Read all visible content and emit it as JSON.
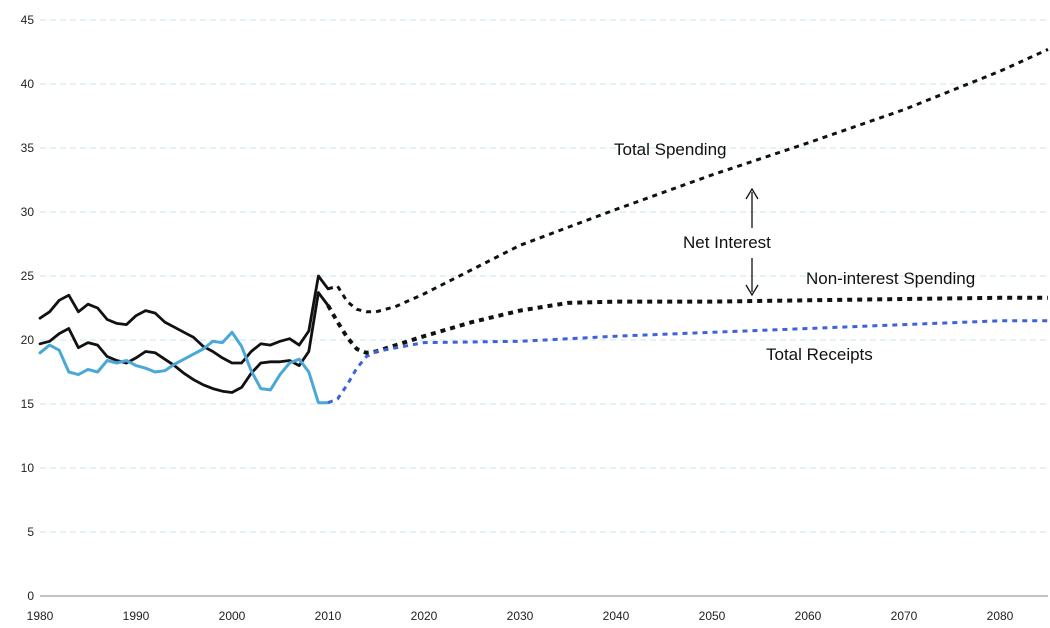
{
  "chart_data": {
    "type": "line",
    "title": "",
    "xlabel": "",
    "ylabel": "",
    "xlim": [
      1980,
      2085
    ],
    "ylim": [
      0,
      45
    ],
    "x_ticks": [
      1980,
      1990,
      2000,
      2010,
      2020,
      2030,
      2040,
      2050,
      2060,
      2070,
      2080
    ],
    "y_ticks": [
      0,
      5,
      10,
      15,
      20,
      25,
      30,
      35,
      40,
      45
    ],
    "grid": true,
    "colors": {
      "spending": "#111111",
      "receipts_actual": "#4aa8d8",
      "receipts_projected": "#3d63d6",
      "grid": "#c9e6ee"
    },
    "series": [
      {
        "name": "Total Spending",
        "actual": [
          [
            1980,
            21.7
          ],
          [
            1981,
            22.2
          ],
          [
            1982,
            23.1
          ],
          [
            1983,
            23.5
          ],
          [
            1984,
            22.2
          ],
          [
            1985,
            22.8
          ],
          [
            1986,
            22.5
          ],
          [
            1987,
            21.6
          ],
          [
            1988,
            21.3
          ],
          [
            1989,
            21.2
          ],
          [
            1990,
            21.9
          ],
          [
            1991,
            22.3
          ],
          [
            1992,
            22.1
          ],
          [
            1993,
            21.4
          ],
          [
            1994,
            21.0
          ],
          [
            1995,
            20.6
          ],
          [
            1996,
            20.2
          ],
          [
            1997,
            19.5
          ],
          [
            1998,
            19.1
          ],
          [
            1999,
            18.6
          ],
          [
            2000,
            18.2
          ],
          [
            2001,
            18.2
          ],
          [
            2002,
            19.1
          ],
          [
            2003,
            19.7
          ],
          [
            2004,
            19.6
          ],
          [
            2005,
            19.9
          ],
          [
            2006,
            20.1
          ],
          [
            2007,
            19.6
          ],
          [
            2008,
            20.7
          ],
          [
            2009,
            25.0
          ],
          [
            2010,
            24.0
          ]
        ],
        "projected": [
          [
            2010,
            24.0
          ],
          [
            2011,
            24.2
          ],
          [
            2012,
            23.0
          ],
          [
            2013,
            22.4
          ],
          [
            2014,
            22.2
          ],
          [
            2015,
            22.2
          ],
          [
            2017,
            22.6
          ],
          [
            2020,
            23.6
          ],
          [
            2025,
            25.5
          ],
          [
            2030,
            27.4
          ],
          [
            2040,
            30.2
          ],
          [
            2050,
            32.9
          ],
          [
            2060,
            35.4
          ],
          [
            2070,
            38.0
          ],
          [
            2080,
            41.0
          ],
          [
            2085,
            42.7
          ]
        ]
      },
      {
        "name": "Non-interest Spending",
        "actual": [
          [
            1980,
            19.7
          ],
          [
            1981,
            19.9
          ],
          [
            1982,
            20.5
          ],
          [
            1983,
            20.9
          ],
          [
            1984,
            19.4
          ],
          [
            1985,
            19.8
          ],
          [
            1986,
            19.6
          ],
          [
            1987,
            18.7
          ],
          [
            1988,
            18.4
          ],
          [
            1989,
            18.2
          ],
          [
            1990,
            18.6
          ],
          [
            1991,
            19.1
          ],
          [
            1992,
            19.0
          ],
          [
            1993,
            18.5
          ],
          [
            1994,
            18.0
          ],
          [
            1995,
            17.4
          ],
          [
            1996,
            16.9
          ],
          [
            1997,
            16.5
          ],
          [
            1998,
            16.2
          ],
          [
            1999,
            16.0
          ],
          [
            2000,
            15.9
          ],
          [
            2001,
            16.3
          ],
          [
            2002,
            17.4
          ],
          [
            2003,
            18.2
          ],
          [
            2004,
            18.3
          ],
          [
            2005,
            18.3
          ],
          [
            2006,
            18.4
          ],
          [
            2007,
            18.0
          ],
          [
            2008,
            19.1
          ],
          [
            2009,
            23.7
          ],
          [
            2010,
            22.7
          ]
        ],
        "projected": [
          [
            2010,
            22.7
          ],
          [
            2011,
            21.4
          ],
          [
            2012,
            20.2
          ],
          [
            2013,
            19.3
          ],
          [
            2014,
            19.0
          ],
          [
            2015,
            19.1
          ],
          [
            2020,
            20.3
          ],
          [
            2025,
            21.4
          ],
          [
            2030,
            22.3
          ],
          [
            2035,
            22.9
          ],
          [
            2040,
            23.0
          ],
          [
            2050,
            23.0
          ],
          [
            2060,
            23.1
          ],
          [
            2070,
            23.2
          ],
          [
            2080,
            23.3
          ],
          [
            2085,
            23.3
          ]
        ]
      },
      {
        "name": "Total Receipts",
        "actual": [
          [
            1980,
            19.0
          ],
          [
            1981,
            19.6
          ],
          [
            1982,
            19.2
          ],
          [
            1983,
            17.5
          ],
          [
            1984,
            17.3
          ],
          [
            1985,
            17.7
          ],
          [
            1986,
            17.5
          ],
          [
            1987,
            18.4
          ],
          [
            1988,
            18.2
          ],
          [
            1989,
            18.4
          ],
          [
            1990,
            18.0
          ],
          [
            1991,
            17.8
          ],
          [
            1992,
            17.5
          ],
          [
            1993,
            17.6
          ],
          [
            1994,
            18.1
          ],
          [
            1995,
            18.5
          ],
          [
            1996,
            18.9
          ],
          [
            1997,
            19.3
          ],
          [
            1998,
            19.9
          ],
          [
            1999,
            19.8
          ],
          [
            2000,
            20.6
          ],
          [
            2001,
            19.5
          ],
          [
            2002,
            17.6
          ],
          [
            2003,
            16.2
          ],
          [
            2004,
            16.1
          ],
          [
            2005,
            17.3
          ],
          [
            2006,
            18.2
          ],
          [
            2007,
            18.5
          ],
          [
            2008,
            17.5
          ],
          [
            2009,
            15.1
          ],
          [
            2010,
            15.1
          ]
        ],
        "projected": [
          [
            2010,
            15.1
          ],
          [
            2011,
            15.4
          ],
          [
            2012,
            16.5
          ],
          [
            2013,
            17.8
          ],
          [
            2014,
            18.7
          ],
          [
            2015,
            19.1
          ],
          [
            2020,
            19.8
          ],
          [
            2030,
            19.9
          ],
          [
            2040,
            20.3
          ],
          [
            2050,
            20.6
          ],
          [
            2060,
            20.9
          ],
          [
            2070,
            21.2
          ],
          [
            2080,
            21.5
          ],
          [
            2085,
            21.5
          ]
        ]
      }
    ],
    "annotations": [
      {
        "id": "total_spending",
        "text": "Total Spending"
      },
      {
        "id": "net_interest",
        "text": "Net Interest"
      },
      {
        "id": "non_interest",
        "text": "Non-interest Spending"
      },
      {
        "id": "total_receipts",
        "text": "Total Receipts"
      }
    ]
  }
}
